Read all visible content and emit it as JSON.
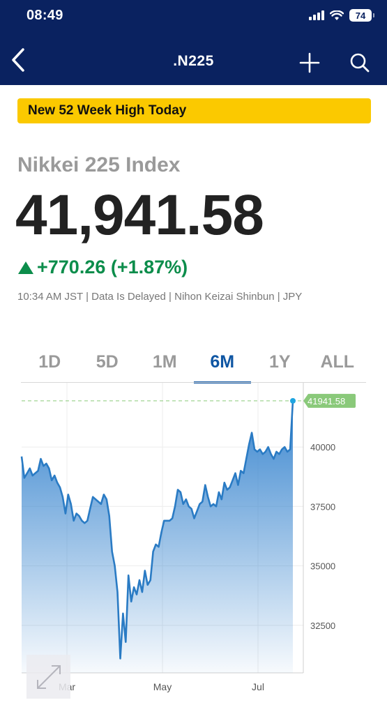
{
  "status_bar": {
    "time": "08:49",
    "battery": "74"
  },
  "nav": {
    "title": ".N225"
  },
  "banner": {
    "text": "New 52 Week High Today"
  },
  "quote": {
    "name": "Nikkei 225 Index",
    "price": "41,941.58",
    "change": "+770.26 (+1.87%)",
    "meta": "10:34 AM JST | Data Is Delayed | Nihon Keizai Shinbun | JPY"
  },
  "range_tabs": [
    {
      "label": "1D",
      "active": false
    },
    {
      "label": "5D",
      "active": false
    },
    {
      "label": "1M",
      "active": false
    },
    {
      "label": "6M",
      "active": true
    },
    {
      "label": "1Y",
      "active": false
    },
    {
      "label": "ALL",
      "active": false
    }
  ],
  "colors": {
    "nav_bg": "#0a2260",
    "banner": "#fbc900",
    "positive": "#0c8d4b",
    "accent": "#0f56a3",
    "line": "#2a7bc4",
    "last_price_tag": "#8ac97a"
  },
  "chart_data": {
    "type": "area",
    "xlabel": "",
    "ylabel": "",
    "x_ticks": [
      "Mar",
      "May",
      "Jul"
    ],
    "y_ticks": [
      40000,
      37500,
      35000,
      32500
    ],
    "ylim": [
      30500,
      42700
    ],
    "y_axis_position": "right",
    "grid": true,
    "last_price_label": "41941.58",
    "series": [
      {
        "values": [
          39600,
          38700,
          38900,
          39100,
          38800,
          38900,
          39000,
          39500,
          39200,
          39300,
          39100,
          38600,
          38800,
          38500,
          38300,
          37900,
          37200,
          38000,
          37600,
          36900,
          37200,
          37100,
          36900,
          36800,
          36900,
          37400,
          37900,
          37800,
          37700,
          37600,
          38000,
          37800,
          37100,
          35600,
          35000,
          33900,
          31100,
          33000,
          31800,
          34600,
          33500,
          34100,
          33800,
          34400,
          33900,
          34800,
          34200,
          34400,
          35600,
          35900,
          35800,
          36400,
          36900,
          36900,
          36900,
          37000,
          37500,
          38200,
          38100,
          37600,
          37800,
          37500,
          37400,
          37000,
          37300,
          37600,
          37700,
          38400,
          37900,
          37500,
          37600,
          37500,
          38100,
          37800,
          38500,
          38200,
          38300,
          38600,
          38900,
          38400,
          39000,
          38900,
          39500,
          40100,
          40600,
          39900,
          39800,
          39900,
          39700,
          39800,
          40000,
          39700,
          39500,
          39800,
          39700,
          39900,
          40000,
          39800,
          39900,
          41941.58
        ]
      }
    ]
  }
}
